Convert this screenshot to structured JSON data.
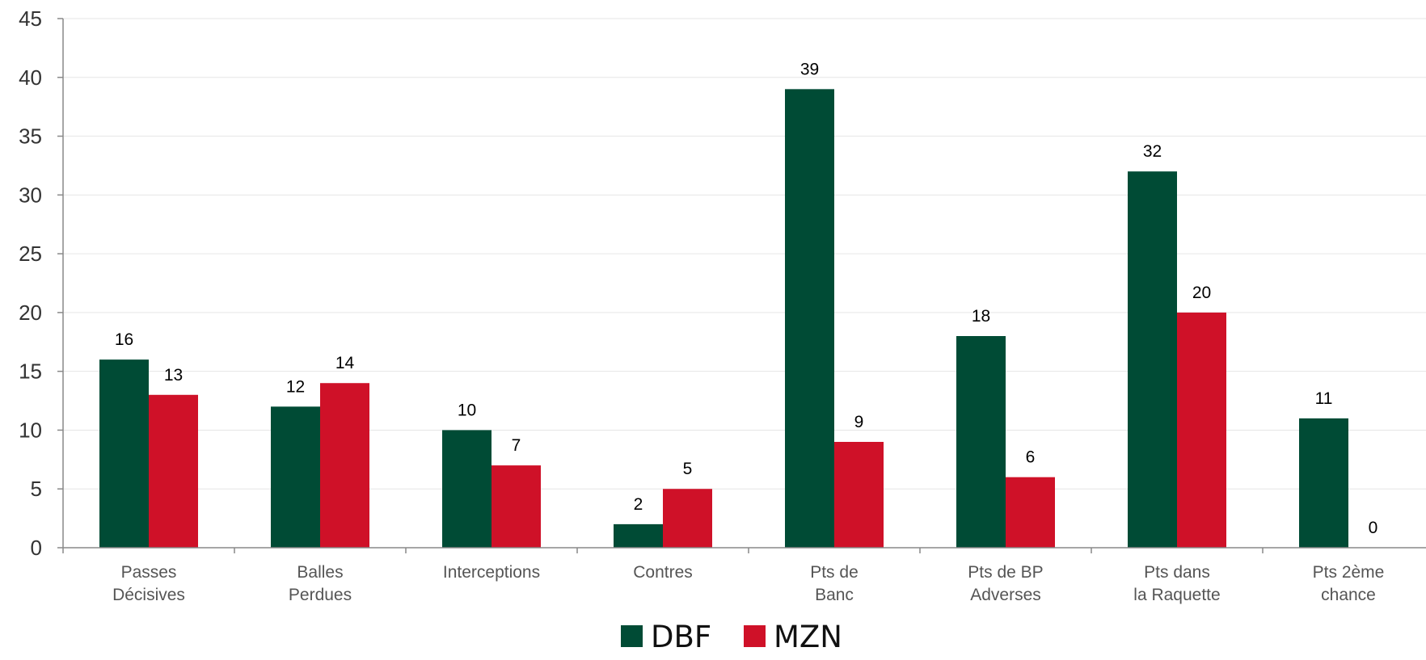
{
  "chart_data": {
    "type": "bar",
    "categories": [
      [
        "Passes",
        "Décisives"
      ],
      [
        "Balles",
        "Perdues"
      ],
      [
        "Interceptions"
      ],
      [
        "Contres"
      ],
      [
        "Pts de",
        "Banc"
      ],
      [
        "Pts de BP",
        "Adverses"
      ],
      [
        "Pts dans",
        "la Raquette"
      ],
      [
        "Pts 2ème",
        "chance"
      ]
    ],
    "series": [
      {
        "name": "DBF",
        "color": "#004b35",
        "values": [
          16,
          12,
          10,
          2,
          39,
          18,
          32,
          11
        ]
      },
      {
        "name": "MZN",
        "color": "#cf1128",
        "values": [
          13,
          14,
          7,
          5,
          9,
          6,
          20,
          0
        ]
      }
    ],
    "ylim": [
      0,
      45
    ],
    "yticks": [
      0,
      5,
      10,
      15,
      20,
      25,
      30,
      35,
      40,
      45
    ],
    "grid": true,
    "legend": "bottom-center"
  }
}
